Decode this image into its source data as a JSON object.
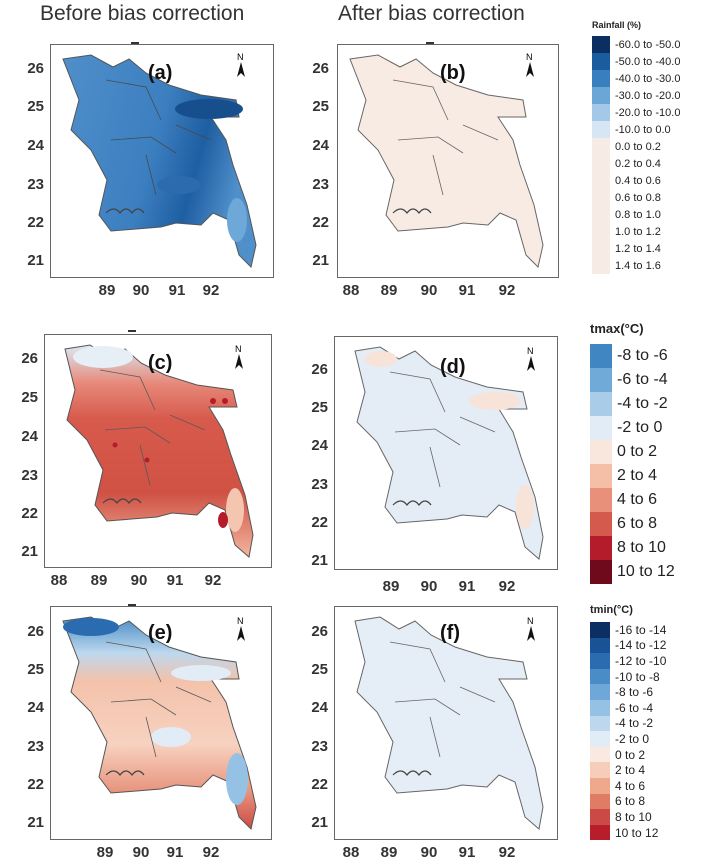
{
  "column_titles": [
    "Before bias correction",
    "After bias correction"
  ],
  "panels": [
    {
      "label": "(a)",
      "y_ticks": [
        "26",
        "25",
        "24",
        "23",
        "22",
        "21"
      ],
      "x_ticks": [
        "89",
        "90",
        "91",
        "92"
      ]
    },
    {
      "label": "(b)",
      "y_ticks": [
        "26",
        "25",
        "24",
        "23",
        "22",
        "21"
      ],
      "x_ticks": [
        "88",
        "89",
        "90",
        "91",
        "92"
      ]
    },
    {
      "label": "(c)",
      "y_ticks": [
        "26",
        "25",
        "24",
        "23",
        "22",
        "21"
      ],
      "x_ticks": [
        "88",
        "89",
        "90",
        "91",
        "92"
      ]
    },
    {
      "label": "(d)",
      "y_ticks": [
        "26",
        "25",
        "24",
        "23",
        "22",
        "21"
      ],
      "x_ticks": [
        "89",
        "90",
        "91",
        "92"
      ]
    },
    {
      "label": "(e)",
      "y_ticks": [
        "26",
        "25",
        "24",
        "23",
        "22",
        "21"
      ],
      "x_ticks": [
        "89",
        "90",
        "91",
        "92"
      ]
    },
    {
      "label": "(f)",
      "y_ticks": [
        "26",
        "25",
        "24",
        "23",
        "22",
        "21"
      ],
      "x_ticks": [
        "88",
        "89",
        "90",
        "91",
        "92"
      ]
    }
  ],
  "north_label": "N",
  "legends": {
    "rainfall": {
      "title": "Rainfall (%)",
      "entries": [
        {
          "label": "-60.0 to -50.0",
          "color": "#0b2e63"
        },
        {
          "label": "-50.0 to -40.0",
          "color": "#1a5c9e"
        },
        {
          "label": "-40.0 to -30.0",
          "color": "#3a7fbd"
        },
        {
          "label": "-30.0 to -20.0",
          "color": "#6aa6d6"
        },
        {
          "label": "-20.0 to -10.0",
          "color": "#a4c9e8"
        },
        {
          "label": "-10.0 to 0.0",
          "color": "#d6e6f4"
        },
        {
          "label": "0.0 to 0.2",
          "color": "#f7ebe5"
        },
        {
          "label": "0.2 to 0.4",
          "color": "#f7ebe5"
        },
        {
          "label": "0.4 to 0.6",
          "color": "#f7ebe5"
        },
        {
          "label": "0.6 to 0.8",
          "color": "#f7ebe5"
        },
        {
          "label": "0.8 to 1.0",
          "color": "#f7ebe5"
        },
        {
          "label": "1.0 to 1.2",
          "color": "#f7ebe5"
        },
        {
          "label": "1.2 to 1.4",
          "color": "#f7ebe5"
        },
        {
          "label": "1.4 to 1.6",
          "color": "#f7ebe5"
        }
      ]
    },
    "tmax": {
      "title": "tmax(°C)",
      "entries": [
        {
          "label": "-8 to -6",
          "color": "#3f86c2"
        },
        {
          "label": "-6 to -4",
          "color": "#70aad8"
        },
        {
          "label": "-4 to -2",
          "color": "#a9cde9"
        },
        {
          "label": "-2 to 0",
          "color": "#e1ecf6"
        },
        {
          "label": "0 to 2",
          "color": "#f9e6dc"
        },
        {
          "label": "2 to 4",
          "color": "#f4bfa6"
        },
        {
          "label": "4 to 6",
          "color": "#e8907a"
        },
        {
          "label": "6 to 8",
          "color": "#d45a4e"
        },
        {
          "label": "8 to 10",
          "color": "#b51c2b"
        },
        {
          "label": "10 to 12",
          "color": "#6e0a1c"
        }
      ]
    },
    "tmin": {
      "title": "tmin(°C)",
      "entries": [
        {
          "label": "-16 to -14",
          "color": "#0b2e63"
        },
        {
          "label": "-14 to -12",
          "color": "#1a5296"
        },
        {
          "label": "-12 to -10",
          "color": "#2b6cb0"
        },
        {
          "label": "-10 to -8",
          "color": "#4a8cc6"
        },
        {
          "label": "-8 to -6",
          "color": "#6ea8d8"
        },
        {
          "label": "-6 to -4",
          "color": "#94c1e4"
        },
        {
          "label": "-4 to -2",
          "color": "#bdd8ee"
        },
        {
          "label": "-2 to 0",
          "color": "#e2ecf6"
        },
        {
          "label": "0 to 2",
          "color": "#fae9e0"
        },
        {
          "label": "2 to 4",
          "color": "#f6cdb8"
        },
        {
          "label": "4 to 6",
          "color": "#eea88c"
        },
        {
          "label": "6 to 8",
          "color": "#e07c66"
        },
        {
          "label": "8 to 10",
          "color": "#cc4a45"
        },
        {
          "label": "10 to 12",
          "color": "#b81e2a"
        }
      ]
    }
  }
}
